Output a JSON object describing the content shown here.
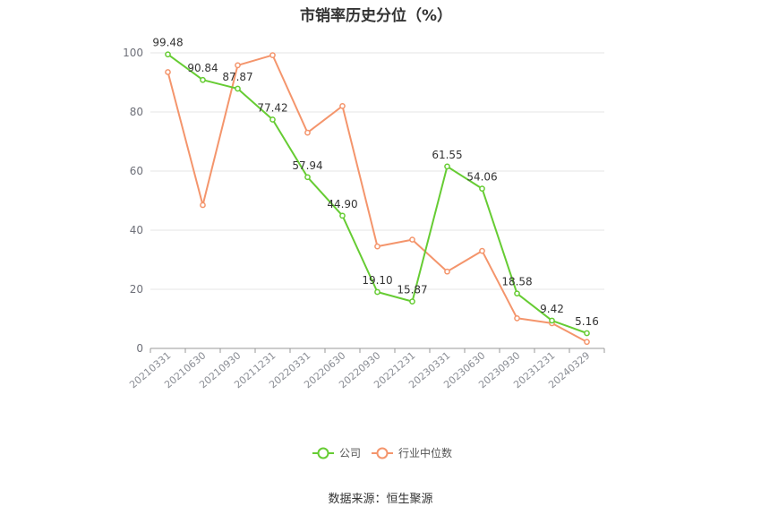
{
  "title": "市销率历史分位（%）",
  "source": "数据来源：恒生聚源",
  "colors": {
    "company": "#66cc33",
    "industry": "#f4956c",
    "grid": "#e6e6e6",
    "axis": "#999999"
  },
  "chart_data": {
    "type": "line",
    "title": "市销率历史分位（%）",
    "xlabel": "",
    "ylabel": "",
    "ylim": [
      0,
      100
    ],
    "yticks": [
      0,
      20,
      40,
      60,
      80,
      100
    ],
    "grid": true,
    "legend_position": "bottom",
    "categories": [
      "20210331",
      "20210630",
      "20210930",
      "20211231",
      "20220331",
      "20220630",
      "20220930",
      "20221231",
      "20230331",
      "20230630",
      "20230930",
      "20231231",
      "20240329"
    ],
    "series": [
      {
        "name": "公司",
        "color": "#66cc33",
        "show_labels": true,
        "values": [
          99.48,
          90.84,
          87.87,
          77.42,
          57.94,
          44.9,
          19.1,
          15.87,
          61.55,
          54.06,
          18.58,
          9.42,
          5.16
        ],
        "labels": [
          "99.48",
          "90.84",
          "87.87",
          "77.42",
          "57.94",
          "44.90",
          "19.10",
          "15.87",
          "61.55",
          "54.06",
          "18.58",
          "9.42",
          "5.16"
        ]
      },
      {
        "name": "行业中位数",
        "color": "#f4956c",
        "show_labels": false,
        "values": [
          93.5,
          48.5,
          95.8,
          99.2,
          73.0,
          82.0,
          34.5,
          36.8,
          26.0,
          33.0,
          10.2,
          8.5,
          2.2
        ]
      }
    ]
  }
}
